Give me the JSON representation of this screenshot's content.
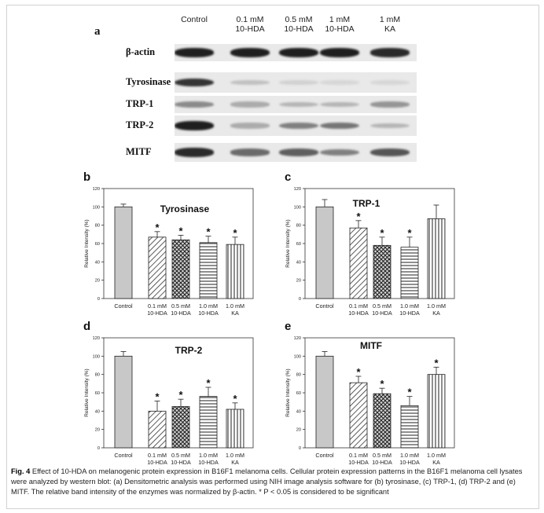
{
  "blot": {
    "panel_letter": "a",
    "columns": [
      {
        "line1": "Control",
        "line2": ""
      },
      {
        "line1": "0.1 mM",
        "line2": "10-HDA"
      },
      {
        "line1": "0.5 mM",
        "line2": "10-HDA"
      },
      {
        "line1": "1 mM",
        "line2": "10-HDA"
      },
      {
        "line1": "1 mM",
        "line2": "KA"
      }
    ],
    "rows": [
      {
        "label": "β-actin",
        "intensity": [
          0.95,
          0.95,
          0.95,
          0.95,
          0.9
        ]
      },
      {
        "label": "Tyrosinase",
        "intensity": [
          0.85,
          0.2,
          0.12,
          0.1,
          0.1
        ]
      },
      {
        "label": "TRP-1",
        "intensity": [
          0.45,
          0.3,
          0.25,
          0.25,
          0.4
        ]
      },
      {
        "label": "TRP-2",
        "intensity": [
          0.95,
          0.3,
          0.5,
          0.55,
          0.25
        ]
      },
      {
        "label": "MITF",
        "intensity": [
          0.9,
          0.6,
          0.65,
          0.5,
          0.7
        ]
      }
    ]
  },
  "chart_data": [
    {
      "panel": "b",
      "type": "bar",
      "title": "Tyrosinase",
      "ylabel": "Relative Intensity (%)",
      "yticks": [
        "0",
        "20",
        "40",
        "60",
        "80",
        "100",
        "120"
      ],
      "ylim": [
        0,
        120
      ],
      "categories": [
        {
          "line1": "Control",
          "line2": ""
        },
        {
          "line1": "0.1 mM",
          "line2": "10-HDA"
        },
        {
          "line1": "0.5 mM",
          "line2": "10-HDA"
        },
        {
          "line1": "1.0 mM",
          "line2": "10-HDA"
        },
        {
          "line1": "1.0 mM",
          "line2": "KA"
        }
      ],
      "values": [
        100,
        67,
        64,
        61,
        59
      ],
      "errors": [
        3,
        6,
        5,
        7,
        8
      ],
      "significant": [
        false,
        true,
        true,
        true,
        true
      ],
      "marker": "*",
      "patterns": [
        "solid",
        "diagonal",
        "crosshatch",
        "horizontal",
        "vertical"
      ]
    },
    {
      "panel": "c",
      "type": "bar",
      "title": "TRP-1",
      "ylabel": "Relative Intensity (%)",
      "yticks": [
        "0",
        "20",
        "40",
        "60",
        "80",
        "100",
        "120"
      ],
      "ylim": [
        0,
        120
      ],
      "categories": [
        {
          "line1": "Control",
          "line2": ""
        },
        {
          "line1": "0.1 mM",
          "line2": "10-HDA"
        },
        {
          "line1": "0.5 mM",
          "line2": "10-HDA"
        },
        {
          "line1": "1.0 mM",
          "line2": "10-HDA"
        },
        {
          "line1": "1.0 mM",
          "line2": "KA"
        }
      ],
      "values": [
        100,
        77,
        58,
        56,
        87
      ],
      "errors": [
        8,
        8,
        9,
        11,
        15
      ],
      "significant": [
        false,
        true,
        true,
        true,
        false
      ],
      "marker": "*",
      "patterns": [
        "solid",
        "diagonal",
        "crosshatch",
        "horizontal",
        "vertical"
      ]
    },
    {
      "panel": "d",
      "type": "bar",
      "title": "TRP-2",
      "ylabel": "Relative Intensity (%)",
      "yticks": [
        "0",
        "20",
        "40",
        "60",
        "80",
        "100",
        "120"
      ],
      "ylim": [
        0,
        120
      ],
      "categories": [
        {
          "line1": "Control",
          "line2": ""
        },
        {
          "line1": "0.1 mM",
          "line2": "10-HDA"
        },
        {
          "line1": "0.5 mM",
          "line2": "10-HDA"
        },
        {
          "line1": "1.0 mM",
          "line2": "10-HDA"
        },
        {
          "line1": "1.0 mM",
          "line2": "KA"
        }
      ],
      "values": [
        100,
        40,
        45,
        56,
        42
      ],
      "errors": [
        5,
        11,
        8,
        10,
        7
      ],
      "significant": [
        false,
        true,
        true,
        true,
        true
      ],
      "marker": "*",
      "patterns": [
        "solid",
        "diagonal",
        "crosshatch",
        "horizontal",
        "vertical"
      ]
    },
    {
      "panel": "e",
      "type": "bar",
      "title": "MITF",
      "ylabel": "Relative Intensity (%)",
      "yticks": [
        "0",
        "20",
        "40",
        "60",
        "80",
        "100",
        "120"
      ],
      "ylim": [
        0,
        120
      ],
      "categories": [
        {
          "line1": "Control",
          "line2": ""
        },
        {
          "line1": "0.1 mM",
          "line2": "10-HDA"
        },
        {
          "line1": "0.5 mM",
          "line2": "10-HDA"
        },
        {
          "line1": "1.0 mM",
          "line2": "10-HDA"
        },
        {
          "line1": "1.0 mM",
          "line2": "KA"
        }
      ],
      "values": [
        100,
        71,
        59,
        46,
        80
      ],
      "errors": [
        5,
        7,
        6,
        10,
        8
      ],
      "significant": [
        false,
        true,
        true,
        true,
        true
      ],
      "marker": "*",
      "patterns": [
        "solid",
        "diagonal",
        "crosshatch",
        "horizontal",
        "vertical"
      ]
    }
  ],
  "caption": {
    "label": "Fig. 4",
    "title": "Effect of 10-HDA on melanogenic protein expression in B16F1 melanoma cells.",
    "body": "Cellular protein expression patterns in the B16F1 melanoma cell lysates were analyzed by western blot: (a) Densitometric analysis was performed using NIH image analysis software for (b) tyrosinase, (c) TRP-1, (d) TRP-2 and (e) MITF. The relative band intensity of the enzymes was normalized by β-actin. * P < 0.05 is considered to be significant"
  }
}
